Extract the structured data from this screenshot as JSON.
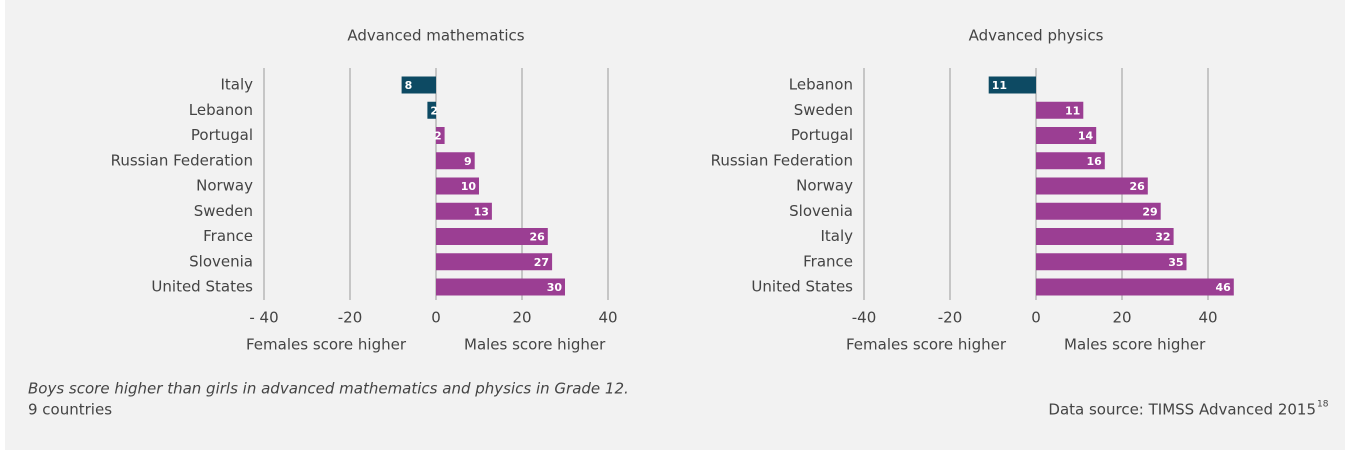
{
  "chart_data": [
    {
      "type": "bar",
      "title": "Advanced mathematics",
      "categories": [
        "Italy",
        "Lebanon",
        "Portugal",
        "Russian Federation",
        "Norway",
        "Sweden",
        "France",
        "Slovenia",
        "United States"
      ],
      "values": [
        -8,
        -2,
        2,
        9,
        10,
        13,
        26,
        27,
        30
      ],
      "value_labels": [
        "8",
        "2",
        "2",
        "9",
        "10",
        "13",
        "26",
        "27",
        "30"
      ],
      "color": "#9b3e93",
      "negative_color": "#0d4a63",
      "xlim": [
        -40,
        40
      ],
      "xticks": [
        {
          "value": -40,
          "label": "- 40"
        },
        -20,
        0,
        20,
        40
      ],
      "xlabel_left": "Females score higher",
      "xlabel_right": "Males score higher",
      "grid": true
    },
    {
      "type": "bar",
      "title": "Advanced physics",
      "categories": [
        "Lebanon",
        "Sweden",
        "Portugal",
        "Russian Federation",
        "Norway",
        "Slovenia",
        "Italy",
        "France",
        "United States"
      ],
      "values": [
        -11,
        11,
        14,
        16,
        26,
        29,
        32,
        35,
        46
      ],
      "value_labels": [
        "11",
        "11",
        "14",
        "16",
        "26",
        "29",
        "32",
        "35",
        "46"
      ],
      "color": "#9b3e93",
      "negative_color": "#0d4a63",
      "xlim": [
        -40,
        40
      ],
      "xticks": [
        -40,
        -20,
        0,
        20,
        40
      ],
      "xlabel_left": "Females score higher",
      "xlabel_right": "Males score higher",
      "grid": true
    }
  ],
  "footer": {
    "caption": "Boys score higher than girls in advanced mathematics and physics in Grade 12.",
    "subcaption": "9 countries",
    "source": "Data source: TIMSS Advanced 2015",
    "source_note": "18"
  }
}
